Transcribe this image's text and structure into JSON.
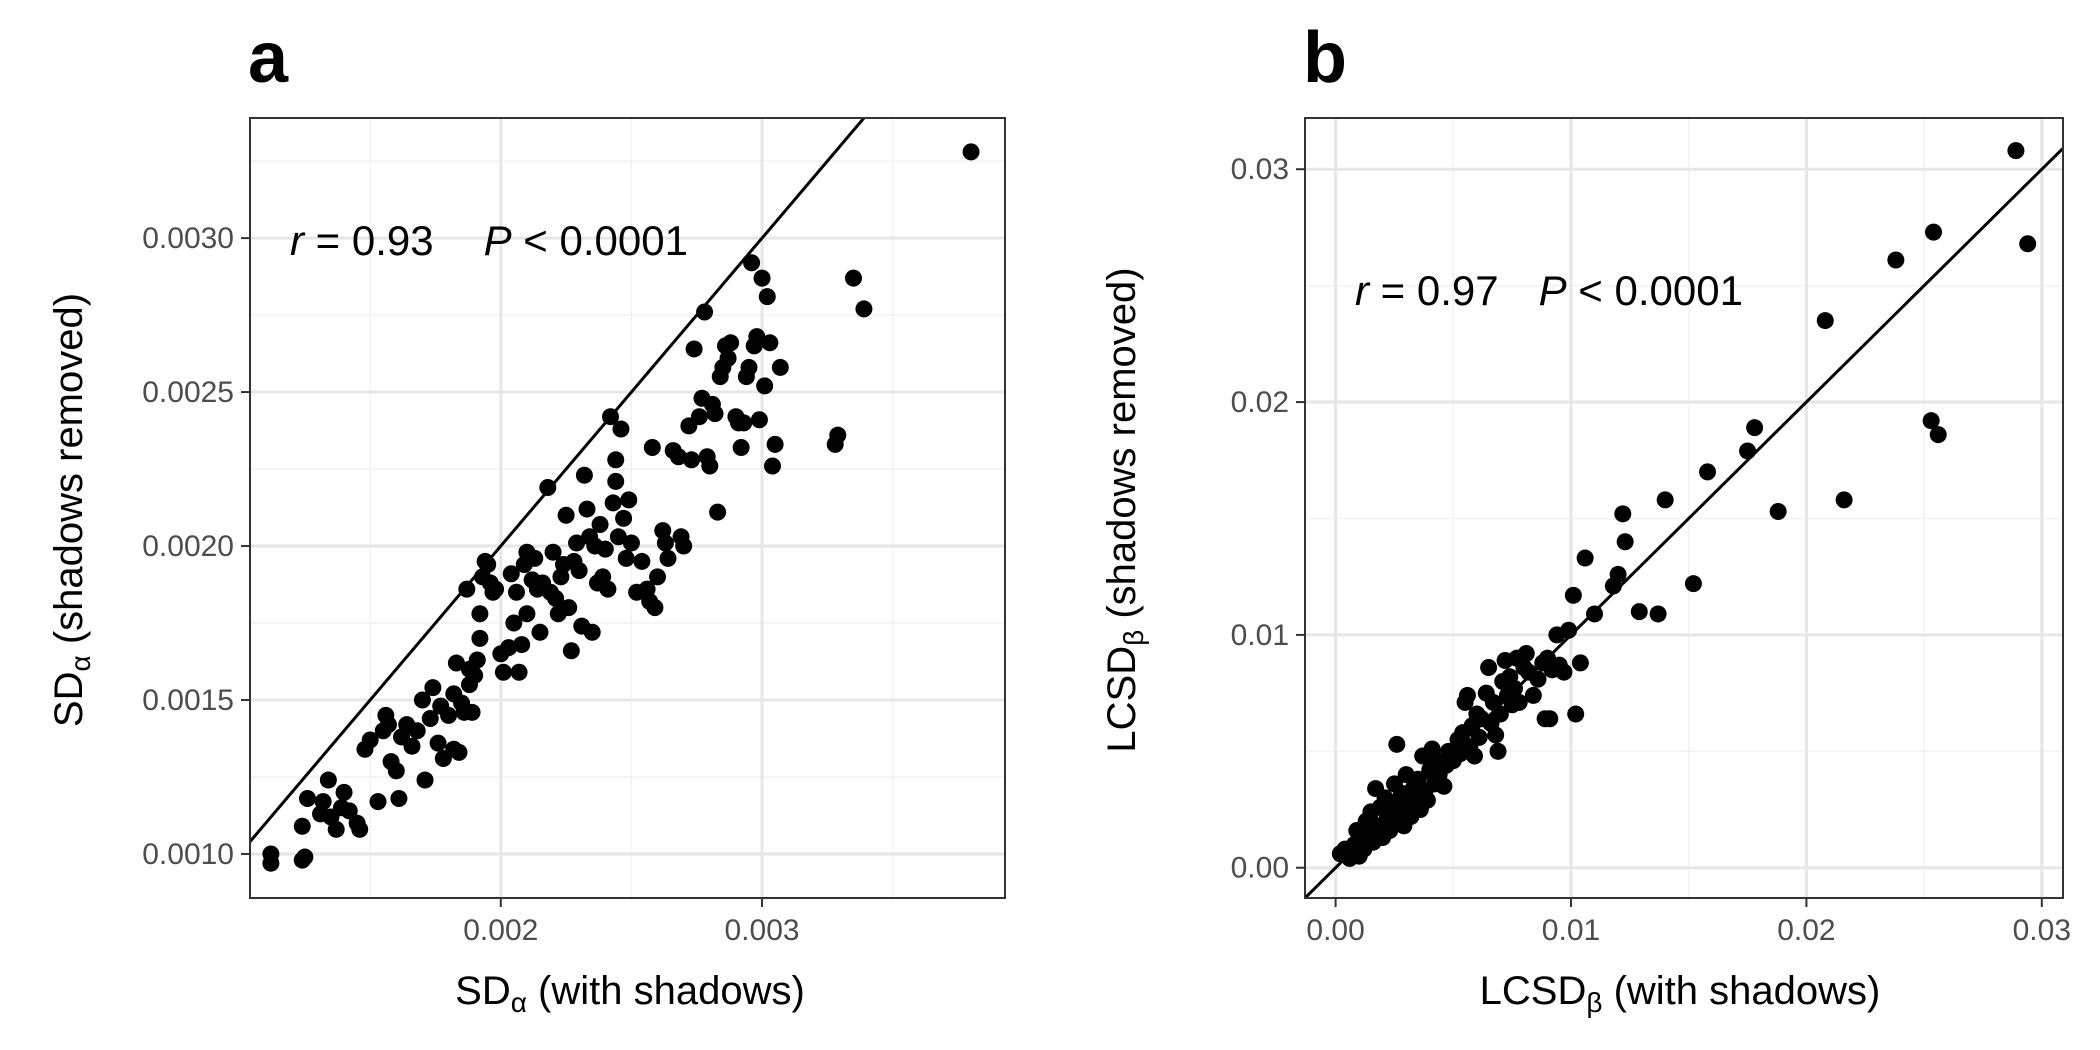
{
  "chart_data": [
    {
      "panel": "a",
      "type": "scatter",
      "xlabel": {
        "base": "SD",
        "sub": "α",
        "rest": " (with shadows)"
      },
      "ylabel": {
        "base": "SD",
        "sub": "α",
        "rest": " (shadows removed)"
      },
      "xlim": [
        0.00104,
        0.00393
      ],
      "ylim": [
        0.000857,
        0.00339
      ],
      "xticks": [
        0.002,
        0.003
      ],
      "xtick_labels": [
        "0.002",
        "0.003"
      ],
      "xminor": [
        0.0015,
        0.0025,
        0.0035
      ],
      "yticks": [
        0.001,
        0.0015,
        0.002,
        0.0025,
        0.003
      ],
      "ytick_labels": [
        "0.0010",
        "0.0015",
        "0.0020",
        "0.0025",
        "0.0030"
      ],
      "yminor": [
        0.00125,
        0.00175,
        0.00225,
        0.00275,
        0.00325
      ],
      "grid": true,
      "reference_line": {
        "slope": 1,
        "intercept": 0
      },
      "annotation": {
        "r_symbol": "r",
        "r_value": " = 0.93",
        "p_symbol": "P",
        "p_value": " < 0.0001"
      },
      "points": [
        [
          0.00112,
          0.001
        ],
        [
          0.00112,
          0.00097
        ],
        [
          0.00124,
          0.00098
        ],
        [
          0.00125,
          0.00099
        ],
        [
          0.00124,
          0.00109
        ],
        [
          0.00126,
          0.00118
        ],
        [
          0.00131,
          0.00113
        ],
        [
          0.00132,
          0.00117
        ],
        [
          0.00134,
          0.00124
        ],
        [
          0.00135,
          0.00112
        ],
        [
          0.00137,
          0.00108
        ],
        [
          0.00139,
          0.00115
        ],
        [
          0.0014,
          0.0012
        ],
        [
          0.00142,
          0.00114
        ],
        [
          0.00145,
          0.0011
        ],
        [
          0.00146,
          0.00108
        ],
        [
          0.00148,
          0.00134
        ],
        [
          0.0015,
          0.00137
        ],
        [
          0.00153,
          0.00117
        ],
        [
          0.00155,
          0.0014
        ],
        [
          0.00156,
          0.00145
        ],
        [
          0.00157,
          0.00142
        ],
        [
          0.00158,
          0.0013
        ],
        [
          0.0016,
          0.00127
        ],
        [
          0.00161,
          0.00118
        ],
        [
          0.00162,
          0.00138
        ],
        [
          0.00164,
          0.00142
        ],
        [
          0.00166,
          0.00135
        ],
        [
          0.00168,
          0.0014
        ],
        [
          0.0017,
          0.0015
        ],
        [
          0.00171,
          0.00124
        ],
        [
          0.00173,
          0.00144
        ],
        [
          0.00174,
          0.00154
        ],
        [
          0.00176,
          0.00136
        ],
        [
          0.00177,
          0.00148
        ],
        [
          0.00178,
          0.00131
        ],
        [
          0.0018,
          0.00145
        ],
        [
          0.00182,
          0.00134
        ],
        [
          0.00182,
          0.00152
        ],
        [
          0.00183,
          0.00162
        ],
        [
          0.00184,
          0.00133
        ],
        [
          0.00185,
          0.00149
        ],
        [
          0.00186,
          0.00146
        ],
        [
          0.00187,
          0.00186
        ],
        [
          0.00188,
          0.0016
        ],
        [
          0.00188,
          0.00155
        ],
        [
          0.00189,
          0.00146
        ],
        [
          0.0019,
          0.00158
        ],
        [
          0.00191,
          0.00163
        ],
        [
          0.00192,
          0.0017
        ],
        [
          0.00192,
          0.00178
        ],
        [
          0.00193,
          0.0019
        ],
        [
          0.00194,
          0.00195
        ],
        [
          0.00195,
          0.00194
        ],
        [
          0.00196,
          0.00188
        ],
        [
          0.00197,
          0.00185
        ],
        [
          0.00198,
          0.00186
        ],
        [
          0.002,
          0.00165
        ],
        [
          0.00201,
          0.00159
        ],
        [
          0.00203,
          0.00167
        ],
        [
          0.00204,
          0.00191
        ],
        [
          0.00205,
          0.00175
        ],
        [
          0.00206,
          0.00185
        ],
        [
          0.00207,
          0.00159
        ],
        [
          0.00208,
          0.00168
        ],
        [
          0.00209,
          0.00194
        ],
        [
          0.0021,
          0.00178
        ],
        [
          0.0021,
          0.00198
        ],
        [
          0.00212,
          0.00189
        ],
        [
          0.00213,
          0.00196
        ],
        [
          0.00214,
          0.00186
        ],
        [
          0.00215,
          0.00172
        ],
        [
          0.00216,
          0.00188
        ],
        [
          0.00218,
          0.00219
        ],
        [
          0.00219,
          0.00185
        ],
        [
          0.0022,
          0.00198
        ],
        [
          0.00221,
          0.00183
        ],
        [
          0.00222,
          0.00178
        ],
        [
          0.00223,
          0.0019
        ],
        [
          0.00224,
          0.00194
        ],
        [
          0.00225,
          0.0021
        ],
        [
          0.00226,
          0.0018
        ],
        [
          0.00227,
          0.00166
        ],
        [
          0.00228,
          0.00195
        ],
        [
          0.00229,
          0.00201
        ],
        [
          0.0023,
          0.00192
        ],
        [
          0.00231,
          0.00174
        ],
        [
          0.00232,
          0.00223
        ],
        [
          0.00233,
          0.00212
        ],
        [
          0.00234,
          0.00203
        ],
        [
          0.00235,
          0.00172
        ],
        [
          0.00236,
          0.002
        ],
        [
          0.00237,
          0.00188
        ],
        [
          0.00238,
          0.00207
        ],
        [
          0.00239,
          0.0019
        ],
        [
          0.0024,
          0.00199
        ],
        [
          0.00241,
          0.00186
        ],
        [
          0.00242,
          0.00242
        ],
        [
          0.00243,
          0.00214
        ],
        [
          0.00244,
          0.00221
        ],
        [
          0.00244,
          0.00228
        ],
        [
          0.00245,
          0.00203
        ],
        [
          0.00246,
          0.00238
        ],
        [
          0.00247,
          0.00209
        ],
        [
          0.00248,
          0.00196
        ],
        [
          0.00249,
          0.00215
        ],
        [
          0.0025,
          0.00201
        ],
        [
          0.00252,
          0.00185
        ],
        [
          0.00254,
          0.00195
        ],
        [
          0.00256,
          0.00186
        ],
        [
          0.00257,
          0.00182
        ],
        [
          0.00258,
          0.00232
        ],
        [
          0.00259,
          0.0018
        ],
        [
          0.0026,
          0.0019
        ],
        [
          0.00262,
          0.00205
        ],
        [
          0.00263,
          0.00201
        ],
        [
          0.00264,
          0.00196
        ],
        [
          0.00266,
          0.00231
        ],
        [
          0.00268,
          0.00229
        ],
        [
          0.00269,
          0.00203
        ],
        [
          0.0027,
          0.002
        ],
        [
          0.00272,
          0.00239
        ],
        [
          0.00273,
          0.00228
        ],
        [
          0.00274,
          0.00264
        ],
        [
          0.00276,
          0.00242
        ],
        [
          0.00277,
          0.00248
        ],
        [
          0.00278,
          0.00276
        ],
        [
          0.00279,
          0.00229
        ],
        [
          0.0028,
          0.00226
        ],
        [
          0.00281,
          0.00246
        ],
        [
          0.00282,
          0.00243
        ],
        [
          0.00283,
          0.00211
        ],
        [
          0.00284,
          0.00255
        ],
        [
          0.00285,
          0.00258
        ],
        [
          0.00286,
          0.00265
        ],
        [
          0.00287,
          0.00261
        ],
        [
          0.00288,
          0.00266
        ],
        [
          0.0029,
          0.00242
        ],
        [
          0.00291,
          0.0024
        ],
        [
          0.00292,
          0.00232
        ],
        [
          0.00293,
          0.0024
        ],
        [
          0.00294,
          0.00255
        ],
        [
          0.00295,
          0.00258
        ],
        [
          0.00296,
          0.00292
        ],
        [
          0.00297,
          0.00265
        ],
        [
          0.00298,
          0.00268
        ],
        [
          0.00299,
          0.00241
        ],
        [
          0.003,
          0.00287
        ],
        [
          0.00301,
          0.00252
        ],
        [
          0.00302,
          0.00281
        ],
        [
          0.00303,
          0.00266
        ],
        [
          0.00304,
          0.00226
        ],
        [
          0.00305,
          0.00233
        ],
        [
          0.00307,
          0.00258
        ],
        [
          0.00328,
          0.00233
        ],
        [
          0.00329,
          0.00236
        ],
        [
          0.00335,
          0.00287
        ],
        [
          0.00339,
          0.00277
        ],
        [
          0.0038,
          0.00328
        ]
      ]
    },
    {
      "panel": "b",
      "type": "scatter",
      "xlabel": {
        "base": "LCSD",
        "sub": "β",
        "rest": " (with shadows)"
      },
      "ylabel": {
        "base": "LCSD",
        "sub": "β",
        "rest": " (shadows removed)"
      },
      "xlim": [
        -0.0013,
        0.0309
      ],
      "ylim": [
        -0.0013,
        0.0322
      ],
      "xticks": [
        0,
        0.01,
        0.02,
        0.03
      ],
      "xtick_labels": [
        "0.00",
        "0.01",
        "0.02",
        "0.03"
      ],
      "xminor": [
        0.005,
        0.015,
        0.025
      ],
      "yticks": [
        0,
        0.01,
        0.02,
        0.03
      ],
      "ytick_labels": [
        "0.00",
        "0.01",
        "0.02",
        "0.03"
      ],
      "yminor": [
        0.005,
        0.015,
        0.025
      ],
      "grid": true,
      "reference_line": {
        "slope": 1,
        "intercept": 0
      },
      "annotation": {
        "r_symbol": "r",
        "r_value": " = 0.97",
        "p_symbol": "P",
        "p_value": " < 0.0001"
      },
      "points": [
        [
          0.0002,
          0.0006
        ],
        [
          0.0004,
          0.0008
        ],
        [
          0.0006,
          0.0004
        ],
        [
          0.0008,
          0.001
        ],
        [
          0.0009,
          0.0016
        ],
        [
          0.001,
          0.0005
        ],
        [
          0.0011,
          0.0012
        ],
        [
          0.0012,
          0.0008
        ],
        [
          0.0013,
          0.002
        ],
        [
          0.0014,
          0.0014
        ],
        [
          0.0015,
          0.0024
        ],
        [
          0.0016,
          0.0011
        ],
        [
          0.0017,
          0.0034
        ],
        [
          0.0018,
          0.0018
        ],
        [
          0.0019,
          0.0026
        ],
        [
          0.002,
          0.0013
        ],
        [
          0.0021,
          0.003
        ],
        [
          0.0022,
          0.0022
        ],
        [
          0.0023,
          0.0016
        ],
        [
          0.0024,
          0.0028
        ],
        [
          0.0025,
          0.0036
        ],
        [
          0.0026,
          0.002
        ],
        [
          0.0026,
          0.0053
        ],
        [
          0.0027,
          0.0025
        ],
        [
          0.0028,
          0.0032
        ],
        [
          0.0029,
          0.0018
        ],
        [
          0.003,
          0.004
        ],
        [
          0.0031,
          0.0027
        ],
        [
          0.0032,
          0.0022
        ],
        [
          0.0033,
          0.0034
        ],
        [
          0.0034,
          0.003
        ],
        [
          0.0035,
          0.0038
        ],
        [
          0.0036,
          0.0025
        ],
        [
          0.0037,
          0.0048
        ],
        [
          0.0038,
          0.0033
        ],
        [
          0.0039,
          0.0029
        ],
        [
          0.004,
          0.0042
        ],
        [
          0.0041,
          0.0051
        ],
        [
          0.0042,
          0.0036
        ],
        [
          0.0043,
          0.0046
        ],
        [
          0.0044,
          0.004
        ],
        [
          0.0046,
          0.0035
        ],
        [
          0.0047,
          0.0044
        ],
        [
          0.0048,
          0.005
        ],
        [
          0.005,
          0.0046
        ],
        [
          0.0052,
          0.0055
        ],
        [
          0.0053,
          0.0049
        ],
        [
          0.0054,
          0.0058
        ],
        [
          0.0055,
          0.0071
        ],
        [
          0.0056,
          0.0074
        ],
        [
          0.0057,
          0.0052
        ],
        [
          0.0058,
          0.0061
        ],
        [
          0.0059,
          0.0048
        ],
        [
          0.006,
          0.0066
        ],
        [
          0.0061,
          0.0056
        ],
        [
          0.0062,
          0.0064
        ],
        [
          0.0064,
          0.0075
        ],
        [
          0.0065,
          0.0086
        ],
        [
          0.0066,
          0.0062
        ],
        [
          0.0067,
          0.0071
        ],
        [
          0.0068,
          0.0057
        ],
        [
          0.0069,
          0.005
        ],
        [
          0.007,
          0.0066
        ],
        [
          0.0071,
          0.008
        ],
        [
          0.0072,
          0.0089
        ],
        [
          0.0073,
          0.0074
        ],
        [
          0.0074,
          0.0082
        ],
        [
          0.0075,
          0.007
        ],
        [
          0.0076,
          0.0077
        ],
        [
          0.0077,
          0.009
        ],
        [
          0.0078,
          0.0071
        ],
        [
          0.008,
          0.0086
        ],
        [
          0.0081,
          0.0092
        ],
        [
          0.0082,
          0.0084
        ],
        [
          0.0084,
          0.0074
        ],
        [
          0.0086,
          0.0081
        ],
        [
          0.0088,
          0.0088
        ],
        [
          0.0089,
          0.0064
        ],
        [
          0.009,
          0.009
        ],
        [
          0.0091,
          0.0064
        ],
        [
          0.0092,
          0.0085
        ],
        [
          0.0094,
          0.01
        ],
        [
          0.0095,
          0.0087
        ],
        [
          0.0097,
          0.0084
        ],
        [
          0.0099,
          0.0102
        ],
        [
          0.0101,
          0.0117
        ],
        [
          0.0102,
          0.0066
        ],
        [
          0.0104,
          0.0088
        ],
        [
          0.0106,
          0.0133
        ],
        [
          0.011,
          0.0109
        ],
        [
          0.0118,
          0.0121
        ],
        [
          0.012,
          0.0126
        ],
        [
          0.0122,
          0.0152
        ],
        [
          0.0123,
          0.014
        ],
        [
          0.0129,
          0.011
        ],
        [
          0.0137,
          0.0109
        ],
        [
          0.014,
          0.0158
        ],
        [
          0.0152,
          0.0122
        ],
        [
          0.0158,
          0.017
        ],
        [
          0.0175,
          0.0179
        ],
        [
          0.0178,
          0.0189
        ],
        [
          0.0188,
          0.0153
        ],
        [
          0.0208,
          0.0235
        ],
        [
          0.0216,
          0.0158
        ],
        [
          0.0238,
          0.0261
        ],
        [
          0.0253,
          0.0192
        ],
        [
          0.0254,
          0.0273
        ],
        [
          0.0256,
          0.0186
        ],
        [
          0.0289,
          0.0308
        ],
        [
          0.0294,
          0.0268
        ]
      ]
    }
  ]
}
